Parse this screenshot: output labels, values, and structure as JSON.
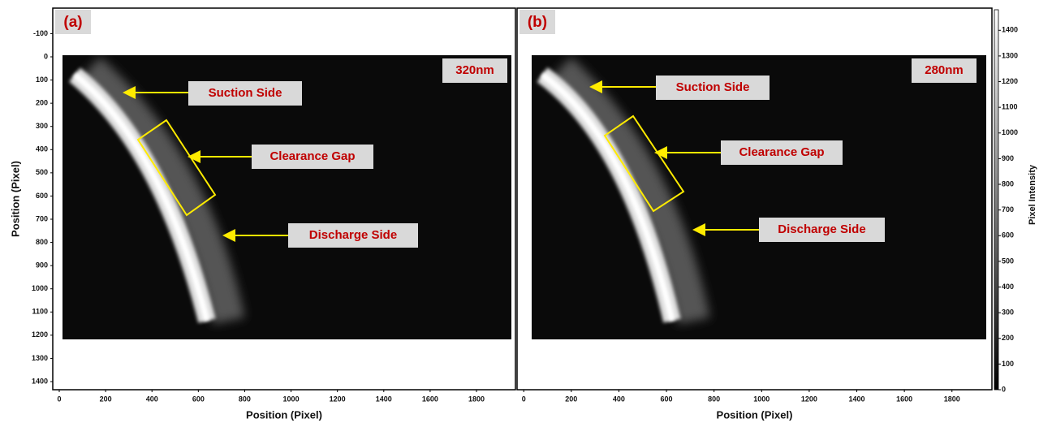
{
  "chart_data": [
    {
      "type": "image",
      "panel_label": "(a)",
      "wavelength": "320nm",
      "xlabel": "Position (Pixel)",
      "ylabel": "Position (Pixel)",
      "xlim": [
        -28,
        1968
      ],
      "xticks": [
        0,
        200,
        400,
        600,
        800,
        1000,
        1200,
        1400,
        1600,
        1800
      ],
      "ylim": [
        1435,
        -210
      ],
      "yticks": [
        -100,
        0,
        100,
        200,
        300,
        400,
        500,
        600,
        700,
        800,
        900,
        1000,
        1100,
        1200,
        1300,
        1400
      ],
      "annotations": [
        "Suction Side",
        "Clearance Gap",
        "Discharge Side"
      ]
    },
    {
      "type": "image",
      "panel_label": "(b)",
      "wavelength": "280nm",
      "xlabel": "Position (Pixel)",
      "xlim": [
        -28,
        1968
      ],
      "xticks": [
        0,
        200,
        400,
        600,
        800,
        1000,
        1200,
        1400,
        1600,
        1800
      ],
      "annotations": [
        "Suction Side",
        "Clearance Gap",
        "Discharge Side"
      ],
      "colorbar": {
        "label": "Pixel Intensity",
        "lim": [
          0,
          1480
        ],
        "ticks": [
          0,
          100,
          200,
          300,
          400,
          500,
          600,
          700,
          800,
          900,
          1000,
          1100,
          1200,
          1300,
          1400
        ]
      }
    }
  ]
}
